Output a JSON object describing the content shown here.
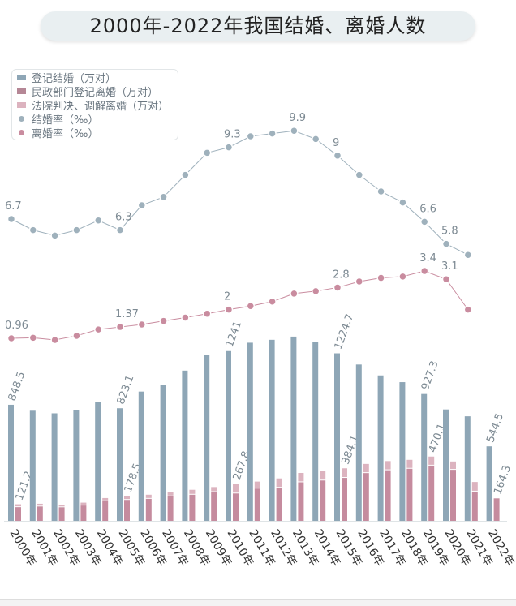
{
  "chart_data": {
    "type": "bar",
    "title": "2000年-2022年我国结婚、离婚人数",
    "categories": [
      "2000年",
      "2001年",
      "2002年",
      "2003年",
      "2004年",
      "2005年",
      "2006年",
      "2007年",
      "2008年",
      "2009年",
      "2010年",
      "2011年",
      "2012年",
      "2013年",
      "2014年",
      "2015年",
      "2016年",
      "2017年",
      "2018年",
      "2019年",
      "2020年",
      "2021年",
      "2022年"
    ],
    "legend": [
      "登记结婚（万对）",
      "民政部门登记离婚（万对）",
      "法院判决、调解离婚（万对）",
      "结婚率（‰）",
      "离婚率（‰）"
    ],
    "legend_placement": "top-left",
    "grid": false,
    "colors": {
      "marriage": "#8ea6b6",
      "civil_divorce": "#c58b9e",
      "court_divorce": "#dcb3bf",
      "marriage_rate": "#9fb1bc",
      "divorce_rate": "#c98c9f"
    },
    "series": [
      {
        "name": "登记结婚（万对）",
        "values": [
          848.5,
          805,
          786,
          811.4,
          867.2,
          823.1,
          945,
          991.4,
          1098.3,
          1212.4,
          1241,
          1302.4,
          1323.6,
          1346.9,
          1306.7,
          1224.7,
          1142.8,
          1063.1,
          1013.9,
          927.3,
          814.3,
          764.3,
          544.5
        ],
        "labels": {
          "0": "848.5",
          "5": "823.1",
          "10": "1241",
          "15": "1224.7",
          "19": "927.3",
          "22": "544.5"
        }
      },
      {
        "name": "民政部门登记离婚（万对）",
        "values": [
          100,
          105,
          99,
          112,
          143,
          153,
          161,
          179,
          191,
          210,
          200,
          236,
          242,
          282,
          295,
          314,
          349,
          370,
          381,
          404,
          373,
          214,
          164.3
        ]
      },
      {
        "name": "法院判决、调解离婚（万对）",
        "values": [
          21.2,
          20,
          19,
          21,
          23.5,
          25.5,
          30,
          31,
          36,
          37,
          67.8,
          51,
          68,
          68,
          69,
          70,
          67,
          67,
          65,
          66,
          61,
          70,
          0
        ],
        "total_labels": {
          "0": "121.2",
          "5": "178.5",
          "10": "267.8",
          "15": "384.1",
          "19": "470.1",
          "22": "164.3"
        }
      },
      {
        "name": "结婚率（‰）",
        "values": [
          6.7,
          6.3,
          6.1,
          6.3,
          6.65,
          6.3,
          7.2,
          7.5,
          8.3,
          9.1,
          9.3,
          9.7,
          9.8,
          9.9,
          9.6,
          9.0,
          8.3,
          7.7,
          7.3,
          6.6,
          5.8,
          5.4,
          null
        ],
        "labels": {
          "0": "6.7",
          "5": "6.3",
          "10": "9.3",
          "13": "9.9",
          "15": "9",
          "19": "6.6",
          "20": "5.8"
        }
      },
      {
        "name": "离婚率（‰）",
        "values": [
          0.96,
          0.98,
          0.9,
          1.05,
          1.28,
          1.37,
          1.46,
          1.59,
          1.71,
          1.85,
          2.0,
          2.13,
          2.29,
          2.58,
          2.67,
          2.8,
          3.02,
          3.15,
          3.2,
          3.4,
          3.1,
          2.0,
          null
        ],
        "labels": {
          "0": "0.96",
          "5": "1.37",
          "10": "2",
          "15": "2.8",
          "19": "3.4",
          "20": "3.1"
        }
      }
    ]
  }
}
